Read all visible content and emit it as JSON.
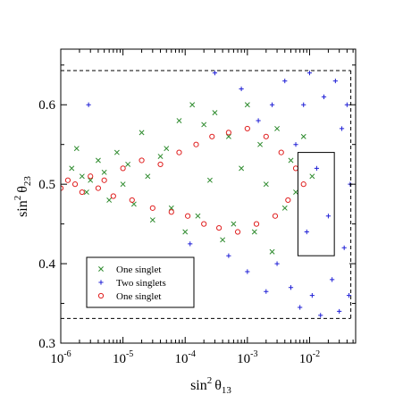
{
  "chart_data": {
    "type": "scatter",
    "x_scale": "log",
    "xlim": [
      1e-06,
      0.055
    ],
    "ylim": [
      0.3,
      0.67
    ],
    "xlabel": {
      "base": "sin",
      "exp": "2",
      "sym": "θ",
      "sub": "13"
    },
    "ylabel": {
      "base": "sin",
      "exp": "2",
      "sym": "θ",
      "sub": "23"
    },
    "x_ticks": [
      {
        "value": 1e-06,
        "mant": "10",
        "exp": "-6"
      },
      {
        "value": 1e-05,
        "mant": "10",
        "exp": "-5"
      },
      {
        "value": 0.0001,
        "mant": "10",
        "exp": "-4"
      },
      {
        "value": 0.001,
        "mant": "10",
        "exp": "-3"
      },
      {
        "value": 0.01,
        "mant": "10",
        "exp": "-2"
      }
    ],
    "y_ticks": [
      {
        "value": 0.3,
        "label": "0.3"
      },
      {
        "value": 0.4,
        "label": "0.4"
      },
      {
        "value": 0.5,
        "label": "0.5"
      },
      {
        "value": 0.6,
        "label": "0.6"
      }
    ],
    "grid": false,
    "legend_position": "bottom-left",
    "allowed_band": {
      "y_min": 0.331,
      "y_max": 0.643,
      "x_max": 0.046
    },
    "best_fit_box": {
      "x_min": 0.0065,
      "x_max": 0.025,
      "y_min": 0.41,
      "y_max": 0.54
    },
    "series": [
      {
        "name": "One singlet",
        "marker": "x",
        "color": "#2e8b2e",
        "points": [
          [
            1.5e-06,
            0.52
          ],
          [
            1.8e-06,
            0.545
          ],
          [
            2.2e-06,
            0.51
          ],
          [
            2.6e-06,
            0.49
          ],
          [
            3e-06,
            0.505
          ],
          [
            4e-06,
            0.53
          ],
          [
            5e-06,
            0.515
          ],
          [
            6e-06,
            0.48
          ],
          [
            8e-06,
            0.54
          ],
          [
            1e-05,
            0.5
          ],
          [
            1.2e-05,
            0.525
          ],
          [
            1.5e-05,
            0.475
          ],
          [
            2e-05,
            0.565
          ],
          [
            2.5e-05,
            0.51
          ],
          [
            3e-05,
            0.455
          ],
          [
            4e-05,
            0.535
          ],
          [
            5e-05,
            0.545
          ],
          [
            6e-05,
            0.47
          ],
          [
            8e-05,
            0.58
          ],
          [
            0.0001,
            0.44
          ],
          [
            0.00013,
            0.6
          ],
          [
            0.00016,
            0.46
          ],
          [
            0.0002,
            0.575
          ],
          [
            0.00025,
            0.505
          ],
          [
            0.0003,
            0.59
          ],
          [
            0.0004,
            0.43
          ],
          [
            0.0005,
            0.56
          ],
          [
            0.0006,
            0.45
          ],
          [
            0.0008,
            0.52
          ],
          [
            0.001,
            0.6
          ],
          [
            0.0013,
            0.44
          ],
          [
            0.0016,
            0.55
          ],
          [
            0.002,
            0.5
          ],
          [
            0.0025,
            0.415
          ],
          [
            0.003,
            0.57
          ],
          [
            0.004,
            0.47
          ],
          [
            0.005,
            0.53
          ],
          [
            0.006,
            0.49
          ],
          [
            0.008,
            0.56
          ],
          [
            0.011,
            0.51
          ]
        ]
      },
      {
        "name": "Two singlets",
        "marker": "+",
        "color": "#1f1fd6",
        "points": [
          [
            2.8e-06,
            0.6
          ],
          [
            0.00012,
            0.425
          ],
          [
            0.0003,
            0.64
          ],
          [
            0.0005,
            0.41
          ],
          [
            0.0008,
            0.62
          ],
          [
            0.001,
            0.39
          ],
          [
            0.0015,
            0.58
          ],
          [
            0.002,
            0.365
          ],
          [
            0.0025,
            0.6
          ],
          [
            0.003,
            0.4
          ],
          [
            0.004,
            0.63
          ],
          [
            0.005,
            0.37
          ],
          [
            0.006,
            0.55
          ],
          [
            0.007,
            0.345
          ],
          [
            0.008,
            0.6
          ],
          [
            0.009,
            0.44
          ],
          [
            0.01,
            0.64
          ],
          [
            0.011,
            0.36
          ],
          [
            0.013,
            0.52
          ],
          [
            0.015,
            0.335
          ],
          [
            0.017,
            0.61
          ],
          [
            0.02,
            0.46
          ],
          [
            0.023,
            0.38
          ],
          [
            0.026,
            0.63
          ],
          [
            0.03,
            0.34
          ],
          [
            0.033,
            0.57
          ],
          [
            0.036,
            0.42
          ],
          [
            0.04,
            0.6
          ],
          [
            0.043,
            0.36
          ],
          [
            0.045,
            0.5
          ]
        ]
      },
      {
        "name": "One singlet",
        "marker": "o",
        "color": "#e02020",
        "points": [
          [
            1e-06,
            0.495
          ],
          [
            1.3e-06,
            0.505
          ],
          [
            1.7e-06,
            0.5
          ],
          [
            2.2e-06,
            0.49
          ],
          [
            3e-06,
            0.51
          ],
          [
            4e-06,
            0.495
          ],
          [
            5e-06,
            0.505
          ],
          [
            7e-06,
            0.485
          ],
          [
            1e-05,
            0.52
          ],
          [
            1.4e-05,
            0.48
          ],
          [
            2e-05,
            0.53
          ],
          [
            3e-05,
            0.47
          ],
          [
            4e-05,
            0.525
          ],
          [
            6e-05,
            0.465
          ],
          [
            8e-05,
            0.54
          ],
          [
            0.00011,
            0.46
          ],
          [
            0.00015,
            0.55
          ],
          [
            0.0002,
            0.45
          ],
          [
            0.00027,
            0.56
          ],
          [
            0.00035,
            0.445
          ],
          [
            0.0005,
            0.565
          ],
          [
            0.0007,
            0.44
          ],
          [
            0.001,
            0.57
          ],
          [
            0.0014,
            0.45
          ],
          [
            0.002,
            0.56
          ],
          [
            0.0028,
            0.46
          ],
          [
            0.0035,
            0.54
          ],
          [
            0.0045,
            0.48
          ],
          [
            0.006,
            0.52
          ],
          [
            0.008,
            0.5
          ]
        ]
      }
    ]
  }
}
